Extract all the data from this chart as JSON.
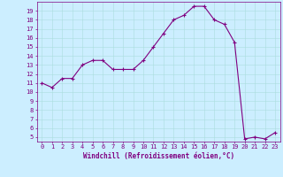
{
  "x": [
    0,
    1,
    2,
    3,
    4,
    5,
    6,
    7,
    8,
    9,
    10,
    11,
    12,
    13,
    14,
    15,
    16,
    17,
    18,
    19,
    20,
    21,
    22,
    23
  ],
  "y": [
    11.0,
    10.5,
    11.5,
    11.5,
    13.0,
    13.5,
    13.5,
    12.5,
    12.5,
    12.5,
    13.5,
    15.0,
    16.5,
    18.0,
    18.5,
    19.5,
    19.5,
    18.0,
    17.5,
    15.5,
    4.8,
    5.0,
    4.8,
    5.5
  ],
  "line_color": "#800080",
  "marker": "+",
  "marker_size": 3,
  "marker_lw": 0.8,
  "bg_color": "#cceeff",
  "grid_color": "#aadddd",
  "xlabel": "Windchill (Refroidissement éolien,°C)",
  "xlabel_color": "#800080",
  "tick_color": "#800080",
  "spine_color": "#800080",
  "xlim": [
    -0.5,
    23.5
  ],
  "ylim": [
    4.5,
    20.0
  ],
  "yticks": [
    5,
    6,
    7,
    8,
    9,
    10,
    11,
    12,
    13,
    14,
    15,
    16,
    17,
    18,
    19
  ],
  "xticks": [
    0,
    1,
    2,
    3,
    4,
    5,
    6,
    7,
    8,
    9,
    10,
    11,
    12,
    13,
    14,
    15,
    16,
    17,
    18,
    19,
    20,
    21,
    22,
    23
  ],
  "font_size_label": 5.5,
  "font_size_tick": 5.0,
  "line_width": 0.8
}
